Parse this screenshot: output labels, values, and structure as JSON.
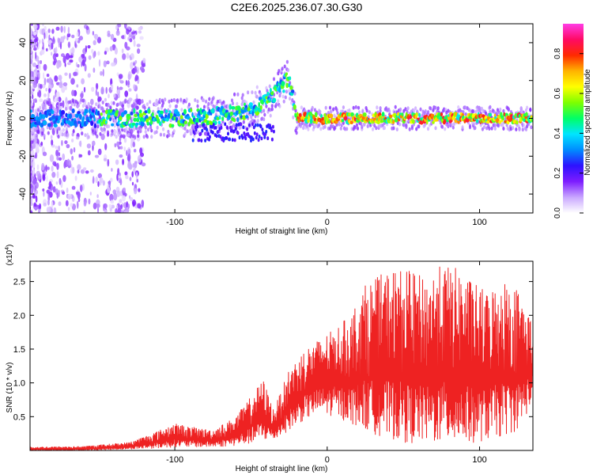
{
  "page_title": "C2E6.2025.236.07.30.G30",
  "chart_data": [
    {
      "type": "heatmap",
      "name": "spectrogram",
      "xlabel": "Height of straight line (km)",
      "ylabel": "Frequency (Hz)",
      "xlim": [
        -195,
        135
      ],
      "ylim": [
        -50,
        50
      ],
      "xticks": [
        -100,
        0,
        100
      ],
      "yticks": [
        -40,
        -20,
        0,
        20,
        40
      ],
      "colorbar": {
        "label": "Normalized spectral amplitude",
        "range": [
          0.0,
          0.95
        ],
        "ticks": [
          0.0,
          0.2,
          0.4,
          0.6,
          0.8
        ],
        "colors": [
          "#ffffff",
          "#c9a7ff",
          "#7d1cff",
          "#2d12ff",
          "#008cff",
          "#00e5ff",
          "#00ff66",
          "#7dff00",
          "#ffff00",
          "#ffb300",
          "#ff2a00",
          "#ff0a64",
          "#ff3ce6"
        ]
      },
      "ridge": {
        "x": [
          -190,
          -160,
          -140,
          -120,
          -100,
          -80,
          -65,
          -55,
          -45,
          -40,
          -35,
          -30,
          -25,
          -20,
          0,
          50,
          100,
          135
        ],
        "freq": [
          0,
          0,
          0,
          0,
          0,
          1,
          2,
          4,
          7,
          9,
          13,
          17,
          21,
          0,
          0,
          0,
          0,
          0
        ]
      }
    },
    {
      "type": "line",
      "name": "snr",
      "xlabel": "Height of straight line (km)",
      "ylabel": "SNR (10 * v/v)",
      "scale_note": "(x10",
      "scale_exp": "4",
      "xlim": [
        -195,
        135
      ],
      "ylim": [
        0,
        2.8
      ],
      "xticks": [
        -100,
        0,
        100
      ],
      "yticks": [
        0.5,
        1.0,
        1.5,
        2.0,
        2.5
      ],
      "color": "#ee2222",
      "envelope": {
        "x": [
          -195,
          -160,
          -130,
          -115,
          -100,
          -90,
          -75,
          -60,
          -50,
          -42,
          -35,
          -25,
          -15,
          -5,
          5,
          15,
          25,
          35,
          45,
          55,
          65,
          75,
          85,
          95,
          105,
          115,
          125,
          135
        ],
        "min": [
          0.0,
          0.0,
          0.02,
          0.03,
          0.05,
          0.05,
          0.05,
          0.07,
          0.1,
          0.15,
          0.15,
          0.3,
          0.45,
          0.55,
          0.5,
          0.4,
          0.3,
          0.2,
          0.15,
          0.1,
          0.1,
          0.1,
          0.1,
          0.1,
          0.15,
          0.2,
          0.3,
          0.7
        ],
        "max": [
          0.05,
          0.06,
          0.12,
          0.25,
          0.4,
          0.35,
          0.3,
          0.5,
          0.8,
          1.05,
          0.6,
          1.2,
          1.5,
          1.65,
          1.8,
          2.0,
          2.45,
          2.6,
          2.7,
          2.65,
          2.55,
          2.75,
          2.7,
          2.5,
          2.35,
          2.55,
          2.4,
          1.9
        ]
      }
    }
  ]
}
